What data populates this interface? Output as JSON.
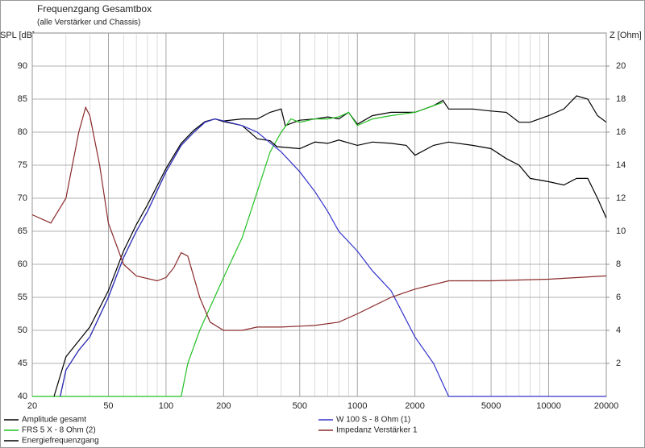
{
  "chart_data": {
    "type": "line",
    "title": "Frequenzgang Gesamtbox",
    "subtitle": "(alle Verstärker und Chassis)",
    "y_label": "SPL [dB]",
    "y2_label": "Z [Ohm]",
    "xscale": "log",
    "xlim": [
      20,
      20000
    ],
    "xticks": [
      20,
      50,
      100,
      200,
      500,
      1000,
      2000,
      5000,
      10000,
      20000
    ],
    "ylim": [
      40,
      95
    ],
    "yticks": [
      40,
      45,
      50,
      55,
      60,
      65,
      70,
      75,
      80,
      85,
      90
    ],
    "y2lim": [
      0,
      22
    ],
    "y2ticks": [
      2,
      4,
      6,
      8,
      10,
      12,
      14,
      16,
      18,
      20
    ],
    "grid": true,
    "series": [
      {
        "name": "Amplitude gesamt",
        "color": "#000000",
        "x": [
          28,
          30,
          35,
          40,
          50,
          60,
          70,
          80,
          100,
          120,
          140,
          160,
          180,
          200,
          250,
          300,
          350,
          400,
          420,
          500,
          600,
          700,
          800,
          900,
          1000,
          1200,
          1500,
          2000,
          2500,
          2800,
          3000,
          4000,
          5000,
          6000,
          7000,
          8000,
          10000,
          12000,
          14000,
          16000,
          18000,
          20000
        ],
        "values": [
          40,
          44,
          47,
          49,
          55,
          61,
          65,
          68,
          74,
          78,
          80,
          81.5,
          82,
          81.7,
          82,
          82,
          83,
          83.5,
          81,
          81.8,
          82,
          82.3,
          82,
          83,
          81.2,
          82.5,
          83,
          83,
          84,
          84.8,
          83.5,
          83.5,
          83.2,
          83,
          81.5,
          81.5,
          82.5,
          83.5,
          85.5,
          85,
          82.5,
          81.5
        ]
      },
      {
        "name": "FRS 5 X - 8 Ohm (2)",
        "color": "#22c022",
        "x": [
          20,
          120,
          130,
          150,
          200,
          250,
          300,
          350,
          400,
          450,
          500,
          600,
          700,
          800,
          900,
          1000,
          1200,
          1500,
          2000,
          2500,
          2800
        ],
        "values": [
          40,
          40,
          45,
          50,
          58,
          64,
          71,
          77,
          80,
          82,
          81.5,
          82,
          82,
          82.3,
          83,
          81,
          82,
          82.5,
          83,
          84,
          84.5
        ]
      },
      {
        "name": "Energiefrequenzgang",
        "color": "#000000",
        "x": [
          26,
          30,
          40,
          50,
          60,
          70,
          80,
          100,
          120,
          140,
          160,
          180,
          200,
          250,
          300,
          350,
          380,
          500,
          600,
          700,
          800,
          1000,
          1200,
          1500,
          1800,
          2000,
          2500,
          3000,
          4000,
          5000,
          6000,
          7000,
          8000,
          10000,
          12000,
          14000,
          16000,
          18000,
          20000
        ],
        "values": [
          40,
          46,
          50.5,
          56,
          62,
          66,
          69,
          74.5,
          78.3,
          80.3,
          81.6,
          82,
          81.6,
          81,
          79,
          78.7,
          77.8,
          77.5,
          78.5,
          78.3,
          78.8,
          78,
          78.5,
          78.3,
          78,
          76.5,
          78,
          78.5,
          78,
          77.5,
          76,
          75,
          73,
          72.5,
          72,
          73,
          73,
          70,
          67
        ]
      },
      {
        "name": "W 100 S - 8 Ohm (1)",
        "color": "#3333cc",
        "x": [
          28,
          30,
          35,
          40,
          50,
          60,
          70,
          80,
          100,
          120,
          140,
          160,
          180,
          200,
          250,
          300,
          400,
          500,
          600,
          700,
          800,
          1000,
          1200,
          1500,
          2000,
          2500,
          3000,
          20000
        ],
        "values": [
          40,
          44,
          47,
          49,
          55,
          61,
          65,
          68,
          74,
          78,
          80,
          81.5,
          82,
          81.7,
          81,
          80,
          77,
          74,
          71,
          68,
          65,
          62,
          59,
          56,
          49,
          45,
          40,
          40
        ]
      },
      {
        "name": "Impedanz Verstärker 1",
        "color": "#8b2a2a",
        "axis": "y2",
        "x": [
          20,
          25,
          30,
          35,
          38,
          40,
          45,
          50,
          60,
          70,
          90,
          100,
          110,
          120,
          130,
          150,
          170,
          200,
          250,
          300,
          400,
          600,
          800,
          1000,
          1500,
          2000,
          3000,
          5000,
          10000,
          20000
        ],
        "values": [
          11,
          10.5,
          12,
          16,
          17.5,
          17,
          14,
          10.5,
          8,
          7.3,
          7,
          7.2,
          7.8,
          8.7,
          8.5,
          6,
          4.5,
          4,
          4,
          4.2,
          4.2,
          4.3,
          4.5,
          5,
          6,
          6.5,
          7,
          7,
          7.1,
          7.3
        ]
      }
    ]
  }
}
